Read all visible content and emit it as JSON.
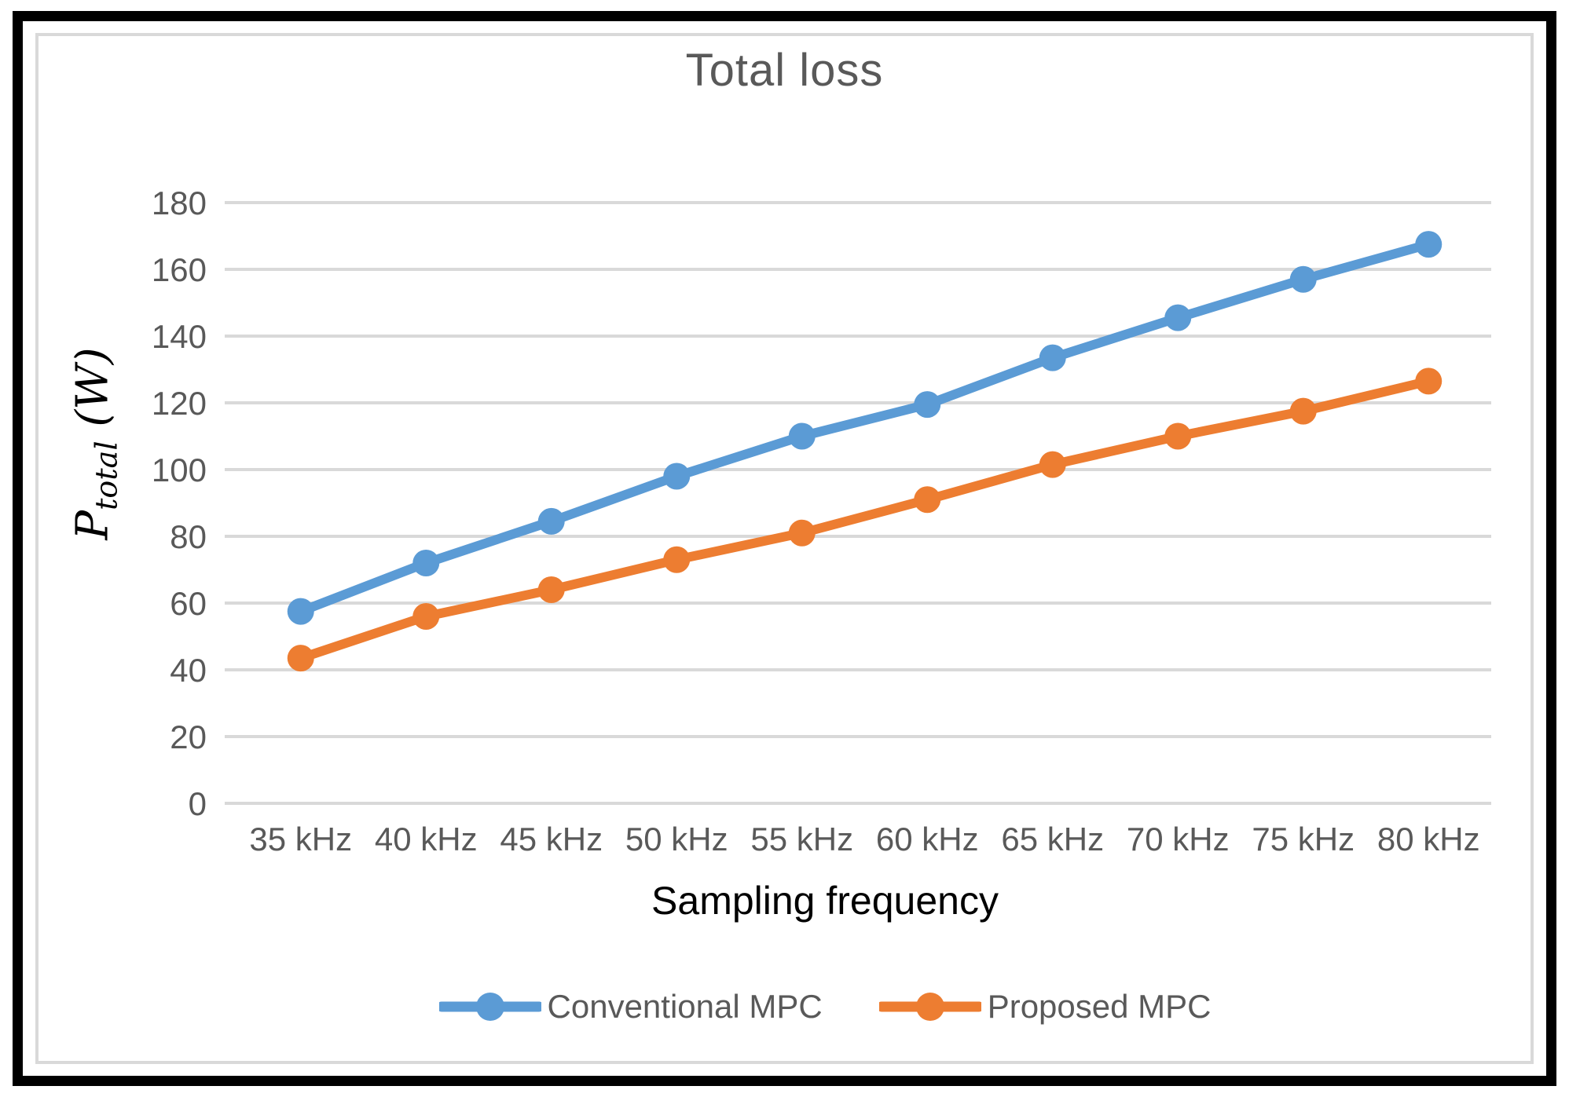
{
  "chart_data": {
    "type": "line",
    "title": "Total loss",
    "xlabel": "Sampling frequency",
    "ylabel": "P_total (W)",
    "ylabel_parts": {
      "symbol": "P",
      "subscript": "total",
      "unit": " (W)"
    },
    "categories": [
      "35 kHz",
      "40 kHz",
      "45 kHz",
      "50 kHz",
      "55 kHz",
      "60 kHz",
      "65 kHz",
      "70 kHz",
      "75 kHz",
      "80 kHz"
    ],
    "series": [
      {
        "name": "Conventional MPC",
        "color": "#5B9BD5",
        "marker": "circle",
        "values": [
          57.5,
          72,
          84.5,
          98,
          110,
          119.5,
          133.5,
          145.5,
          157,
          167.5
        ]
      },
      {
        "name": "Proposed MPC",
        "color": "#ED7D31",
        "marker": "circle",
        "values": [
          43.5,
          56,
          64,
          73,
          81,
          91,
          101.5,
          110,
          117.5,
          126.5
        ]
      }
    ],
    "ylim": [
      0,
      180
    ],
    "yticks": [
      0,
      20,
      40,
      60,
      80,
      100,
      120,
      140,
      160,
      180
    ],
    "grid": true,
    "legend_position": "bottom",
    "colors": {
      "gridline": "#D9D9D9",
      "tick_text": "#595959",
      "title_text": "#595959",
      "axis_title_text": "#000000",
      "frame": "#000000",
      "chart_border": "#D9D9D9"
    }
  }
}
